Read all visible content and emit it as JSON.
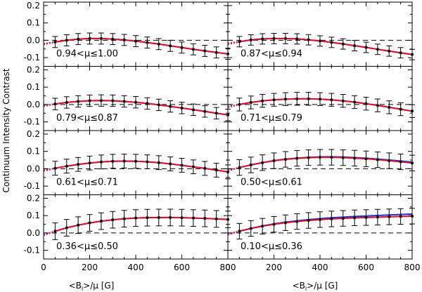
{
  "chart_data": {
    "type": "line",
    "ylabel": "Continuum Intensity Contrast",
    "xlabel_main": "<B",
    "xlabel_sub": "l",
    "xlabel_rest": ">/μ [G]",
    "xlim": [
      0,
      800
    ],
    "ylim": [
      -0.15,
      0.22
    ],
    "xticks": [
      0,
      200,
      400,
      600,
      800
    ],
    "yticks": [
      -0.1,
      0.0,
      0.1,
      0.2
    ],
    "ytick_labels": [
      "-0.1",
      "0.0",
      "0.1",
      "0.2"
    ],
    "series_colors": {
      "observed": "#000000",
      "fit_red": "#e0102a",
      "fit_blue": "#1a2fd0"
    },
    "panels": [
      {
        "label": "0.94<μ≤1.00",
        "x": [
          50,
          100,
          150,
          200,
          250,
          300,
          350,
          400,
          450,
          500,
          550,
          600,
          650,
          700,
          750,
          800
        ],
        "y": [
          -0.01,
          0.0,
          0.007,
          0.01,
          0.01,
          0.007,
          0.002,
          -0.005,
          -0.013,
          -0.022,
          -0.032,
          -0.042,
          -0.052,
          -0.061,
          -0.07,
          -0.078
        ],
        "err": 0.032,
        "fit_blue_offset": 0.0
      },
      {
        "label": "0.87<μ≤0.94",
        "x": [
          50,
          100,
          150,
          200,
          250,
          300,
          350,
          400,
          450,
          500,
          550,
          600,
          650,
          700,
          750,
          800
        ],
        "y": [
          -0.008,
          0.002,
          0.008,
          0.01,
          0.01,
          0.008,
          0.003,
          -0.004,
          -0.012,
          -0.021,
          -0.031,
          -0.041,
          -0.052,
          -0.062,
          -0.072,
          -0.082
        ],
        "err": 0.03,
        "fit_blue_offset": 0.0
      },
      {
        "label": "0.79<μ≤0.87",
        "x": [
          50,
          100,
          150,
          200,
          250,
          300,
          350,
          400,
          450,
          500,
          550,
          600,
          650,
          700,
          750,
          800
        ],
        "y": [
          0.003,
          0.012,
          0.018,
          0.022,
          0.023,
          0.022,
          0.018,
          0.013,
          0.006,
          -0.002,
          -0.011,
          -0.02,
          -0.03,
          -0.04,
          -0.05,
          -0.06
        ],
        "err": 0.033,
        "fit_blue_offset": 0.0
      },
      {
        "label": "0.71<μ≤0.79",
        "x": [
          50,
          100,
          150,
          200,
          250,
          300,
          350,
          400,
          450,
          500,
          550,
          600,
          650,
          700,
          750,
          800
        ],
        "y": [
          0.0,
          0.012,
          0.021,
          0.027,
          0.031,
          0.033,
          0.033,
          0.031,
          0.027,
          0.021,
          0.014,
          0.005,
          -0.005,
          -0.016,
          -0.027,
          -0.038
        ],
        "err": 0.037,
        "fit_blue_offset": 0.0
      },
      {
        "label": "0.61<μ≤0.71",
        "x": [
          50,
          100,
          150,
          200,
          250,
          300,
          350,
          400,
          450,
          500,
          550,
          600,
          650,
          700,
          750,
          800
        ],
        "y": [
          0.003,
          0.015,
          0.025,
          0.033,
          0.039,
          0.043,
          0.044,
          0.043,
          0.04,
          0.035,
          0.028,
          0.02,
          0.011,
          0.002,
          -0.008,
          -0.018
        ],
        "err": 0.04,
        "fit_blue_offset": 0.0
      },
      {
        "label": "0.50<μ≤0.61",
        "x": [
          50,
          100,
          150,
          200,
          250,
          300,
          350,
          400,
          450,
          500,
          550,
          600,
          650,
          700,
          750,
          800
        ],
        "y": [
          0.007,
          0.022,
          0.035,
          0.046,
          0.054,
          0.06,
          0.064,
          0.066,
          0.066,
          0.064,
          0.061,
          0.057,
          0.052,
          0.046,
          0.04,
          0.033
        ],
        "err": 0.045,
        "fit_blue_offset": 0.005
      },
      {
        "label": "0.36<μ≤0.50",
        "x": [
          50,
          100,
          150,
          200,
          250,
          300,
          350,
          400,
          450,
          500,
          550,
          600,
          650,
          700,
          750,
          800
        ],
        "y": [
          0.01,
          0.03,
          0.045,
          0.058,
          0.068,
          0.076,
          0.082,
          0.086,
          0.088,
          0.089,
          0.089,
          0.088,
          0.086,
          0.084,
          0.081,
          0.078
        ],
        "err": 0.048,
        "fit_blue_offset": 0.0
      },
      {
        "label": "0.10<μ≤0.36",
        "x": [
          50,
          100,
          150,
          200,
          250,
          300,
          350,
          400,
          450,
          500,
          550,
          600,
          650,
          700,
          750,
          800
        ],
        "y": [
          0.01,
          0.026,
          0.039,
          0.05,
          0.059,
          0.066,
          0.072,
          0.077,
          0.081,
          0.084,
          0.087,
          0.089,
          0.091,
          0.093,
          0.095,
          0.097
        ],
        "err": 0.045,
        "fit_blue_offset": 0.012
      }
    ]
  }
}
